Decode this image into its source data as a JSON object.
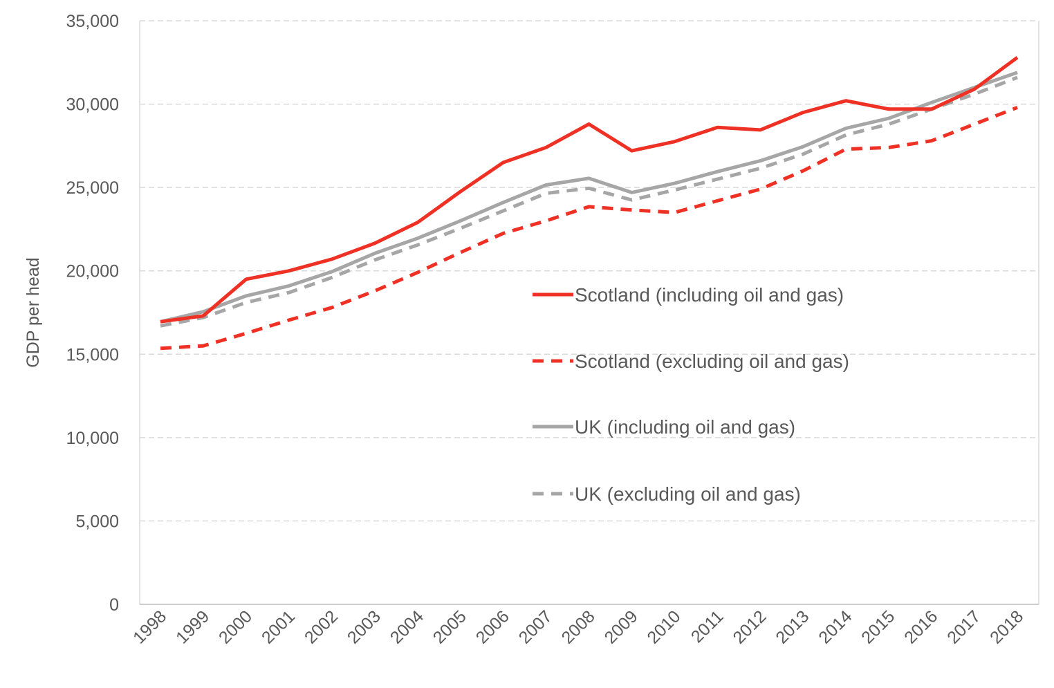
{
  "chart_data": {
    "type": "line",
    "title": "",
    "xlabel": "",
    "ylabel": "GDP per head",
    "ylim": [
      0,
      35000
    ],
    "yticks": [
      "0",
      "5,000",
      "10,000",
      "15,000",
      "20,000",
      "25,000",
      "30,000",
      "35,000"
    ],
    "ytick_values": [
      0,
      5000,
      10000,
      15000,
      20000,
      25000,
      30000,
      35000
    ],
    "grid": "horizontal dashed",
    "legend_position": "center-right inside plot",
    "categories": [
      "1998",
      "1999",
      "2000",
      "2001",
      "2002",
      "2003",
      "2004",
      "2005",
      "2006",
      "2007",
      "2008",
      "2009",
      "2010",
      "2011",
      "2012",
      "2013",
      "2014",
      "2015",
      "2016",
      "2017",
      "2018"
    ],
    "series": [
      {
        "name": "Scotland (including oil and gas)",
        "color": "#ee3124",
        "dash": "solid",
        "values": [
          16950,
          17300,
          19500,
          20000,
          20700,
          21650,
          22900,
          24750,
          26500,
          27400,
          28800,
          27200,
          27750,
          28600,
          28450,
          29500,
          30200,
          29700,
          29700,
          30900,
          32800
        ]
      },
      {
        "name": "Scotland (excluding oil and gas)",
        "color": "#ee3124",
        "dash": "dashed",
        "values": [
          15350,
          15500,
          16250,
          17050,
          17800,
          18800,
          19900,
          21100,
          22250,
          23000,
          23850,
          23650,
          23500,
          24200,
          24900,
          26000,
          27300,
          27400,
          27800,
          28800,
          29800
        ]
      },
      {
        "name": "UK (including oil and gas)",
        "color": "#a6a6a6",
        "dash": "solid",
        "values": [
          16950,
          17550,
          18500,
          19100,
          19950,
          21050,
          21950,
          23000,
          24100,
          25150,
          25550,
          24700,
          25250,
          25950,
          26600,
          27450,
          28550,
          29150,
          30100,
          31000,
          31900
        ]
      },
      {
        "name": "UK (excluding oil and gas)",
        "color": "#a6a6a6",
        "dash": "dashed",
        "values": [
          16700,
          17200,
          18100,
          18700,
          19600,
          20650,
          21550,
          22550,
          23600,
          24650,
          24950,
          24250,
          24850,
          25500,
          26150,
          27000,
          28150,
          28800,
          29700,
          30600,
          31600
        ]
      }
    ]
  }
}
